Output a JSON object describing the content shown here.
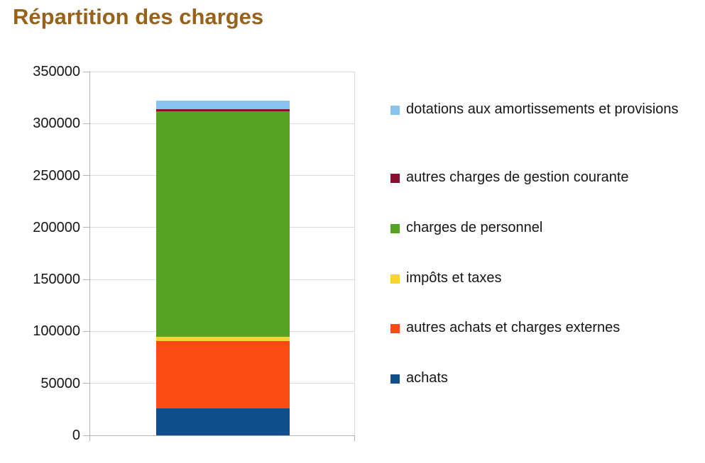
{
  "page": {
    "title": "Répartition des charges",
    "title_color": "#97621b",
    "background": "#ffffff"
  },
  "chart_data": {
    "type": "bar",
    "stacked": true,
    "title": "Répartition des charges",
    "xlabel": "",
    "ylabel": "",
    "categories": [
      ""
    ],
    "series": [
      {
        "name": "achats",
        "color": "#114e8c",
        "values": [
          26000
        ]
      },
      {
        "name": "autres achats et charges externes",
        "color": "#fa4b15",
        "values": [
          65000
        ]
      },
      {
        "name": "impôts et taxes",
        "color": "#fbd22f",
        "values": [
          4000
        ]
      },
      {
        "name": "charges de personnel",
        "color": "#56a222",
        "values": [
          217000
        ]
      },
      {
        "name": "autres charges de gestion courante",
        "color": "#8a0f2f",
        "values": [
          2000
        ]
      },
      {
        "name": "dotations aux amortissements et provisions",
        "color": "#89c4f1",
        "values": [
          8000
        ]
      }
    ],
    "total": 322000,
    "ylim": [
      0,
      350000
    ],
    "ytick_step": 50000,
    "ytick_labels": [
      "0",
      "50000",
      "100000",
      "150000",
      "200000",
      "250000",
      "300000",
      "350000"
    ],
    "grid": true,
    "legend_position": "right"
  },
  "legend": {
    "items": [
      {
        "label": "dotations aux amortissements et pro­visions",
        "color": "#89c4f1"
      },
      {
        "label": "autres charges de gestion courante",
        "color": "#8a0f2f"
      },
      {
        "label": "charges de personnel",
        "color": "#56a222"
      },
      {
        "label": "impôts et taxes",
        "color": "#fbd22f"
      },
      {
        "label": "autres achats et charges externes",
        "color": "#fa4b15"
      },
      {
        "label": "achats",
        "color": "#114e8c"
      }
    ]
  }
}
